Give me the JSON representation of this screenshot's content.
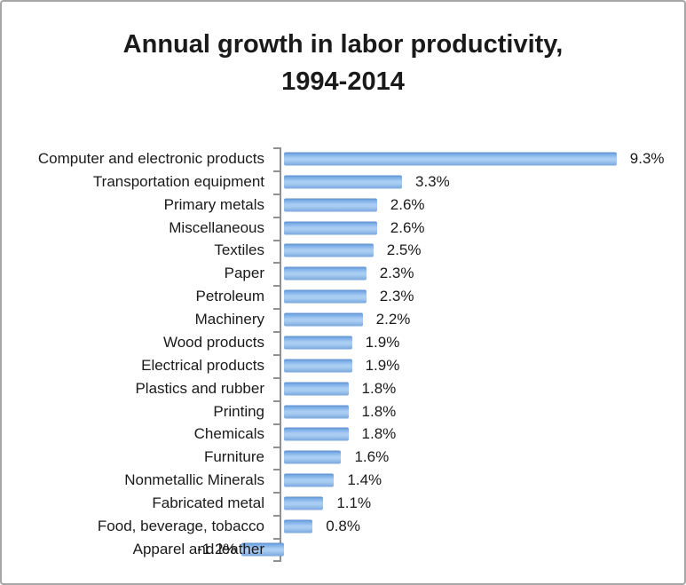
{
  "chart_data": {
    "type": "bar",
    "orientation": "horizontal",
    "title": "Annual growth in labor productivity, 1994-2014",
    "title_lines": [
      "Annual growth in labor productivity,",
      "1994-2014"
    ],
    "categories": [
      "Computer and electronic products",
      "Transportation equipment",
      "Primary metals",
      "Miscellaneous",
      "Textiles",
      "Paper",
      "Petroleum",
      "Machinery",
      "Wood products",
      "Electrical products",
      "Plastics and rubber",
      "Printing",
      "Chemicals",
      "Furniture",
      "Nonmetallic Minerals",
      "Fabricated metal",
      "Food, beverage, tobacco",
      "Apparel and leather"
    ],
    "values": [
      9.3,
      3.3,
      2.6,
      2.6,
      2.5,
      2.3,
      2.3,
      2.2,
      1.9,
      1.9,
      1.8,
      1.8,
      1.8,
      1.6,
      1.4,
      1.1,
      0.8,
      -1.2
    ],
    "value_labels": [
      "9.3%",
      "3.3%",
      "2.6%",
      "2.6%",
      "2.5%",
      "2.3%",
      "2.3%",
      "2.2%",
      "1.9%",
      "1.9%",
      "1.8%",
      "1.8%",
      "1.8%",
      "1.6%",
      "1.4%",
      "1.1%",
      "0.8%",
      "-1.2%"
    ],
    "unit": "%",
    "xlabel": "",
    "ylabel": "",
    "grid": false,
    "legend": false,
    "value_axis_visible": false,
    "data_labels": "outside-end",
    "xlim": [
      -1.5,
      10.5
    ],
    "colors": {
      "bar_gradient": [
        "#5e8fd0",
        "#7fb0e8",
        "#a9cdf3",
        "#a9cdf2",
        "#79a6dd"
      ],
      "axis": "#909090",
      "border": "#a6a6a6",
      "text": "#1a1a1a",
      "background": "#ffffff"
    }
  }
}
